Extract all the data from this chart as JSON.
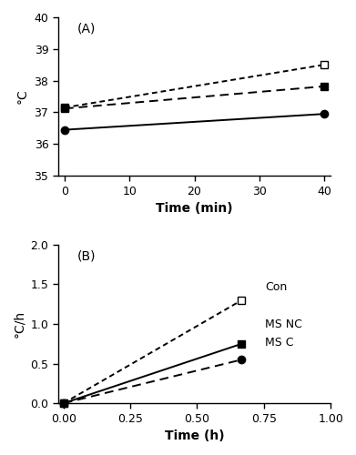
{
  "panel_A": {
    "label": "(A)",
    "con": {
      "x": [
        0,
        40
      ],
      "y": [
        37.15,
        38.5
      ]
    },
    "ms_nc": {
      "x": [
        0,
        40
      ],
      "y": [
        37.12,
        37.82
      ]
    },
    "ms_c": {
      "x": [
        0,
        40
      ],
      "y": [
        36.45,
        36.95
      ]
    },
    "ylabel": "°C",
    "xlabel": "Time (min)",
    "ylim": [
      35,
      40
    ],
    "xlim": [
      -1,
      41
    ],
    "yticks": [
      35,
      36,
      37,
      38,
      39,
      40
    ],
    "xticks": [
      0,
      10,
      20,
      30,
      40
    ]
  },
  "panel_B": {
    "label": "(B)",
    "con": {
      "x": [
        0.0,
        0.667
      ],
      "y": [
        0.0,
        1.3
      ]
    },
    "ms_nc": {
      "x": [
        0.0,
        0.667
      ],
      "y": [
        0.0,
        0.75
      ]
    },
    "ms_c": {
      "x": [
        0.0,
        0.667
      ],
      "y": [
        0.0,
        0.55
      ]
    },
    "ylabel": "°C/h",
    "xlabel": "Time (h)",
    "ylim": [
      0,
      2.0
    ],
    "xlim": [
      -0.02,
      1.0
    ],
    "yticks": [
      0.0,
      0.5,
      1.0,
      1.5,
      2.0
    ],
    "xticks": [
      0.0,
      0.25,
      0.5,
      0.75,
      1.0
    ]
  },
  "line_color": "#000000",
  "markersize": 6,
  "linewidth": 1.4
}
